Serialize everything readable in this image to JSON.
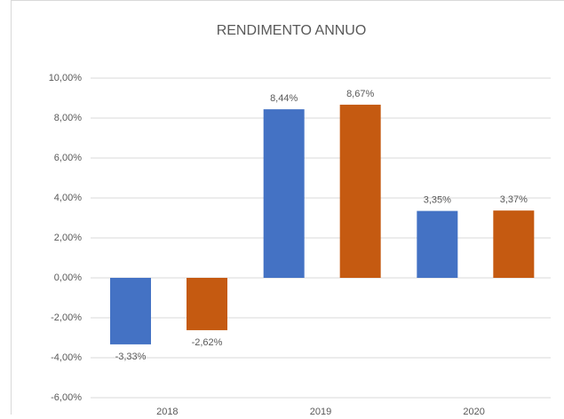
{
  "chart_data": {
    "type": "bar",
    "title": "RENDIMENTO ANNUO",
    "categories": [
      "2018",
      "2019",
      "2020"
    ],
    "series": [
      {
        "color": "#4472c4",
        "values": [
          -3.33,
          8.44,
          3.35
        ],
        "value_labels": [
          "-3,33%",
          "8,44%",
          "3,35%"
        ]
      },
      {
        "color": "#c55a11",
        "values": [
          -2.62,
          8.67,
          3.37
        ],
        "value_labels": [
          "-2,62%",
          "8,67%",
          "3,37%"
        ]
      }
    ],
    "ylim": [
      -6,
      10
    ],
    "yticks": [
      {
        "value": -6,
        "label": "-6,00%"
      },
      {
        "value": -4,
        "label": "-4,00%"
      },
      {
        "value": -2,
        "label": "-2,00%"
      },
      {
        "value": 0,
        "label": "0,00%"
      },
      {
        "value": 2,
        "label": "2,00%"
      },
      {
        "value": 4,
        "label": "4,00%"
      },
      {
        "value": 6,
        "label": "6,00%"
      },
      {
        "value": 8,
        "label": "8,00%"
      },
      {
        "value": 10,
        "label": "10,00%"
      }
    ],
    "grid": true
  }
}
